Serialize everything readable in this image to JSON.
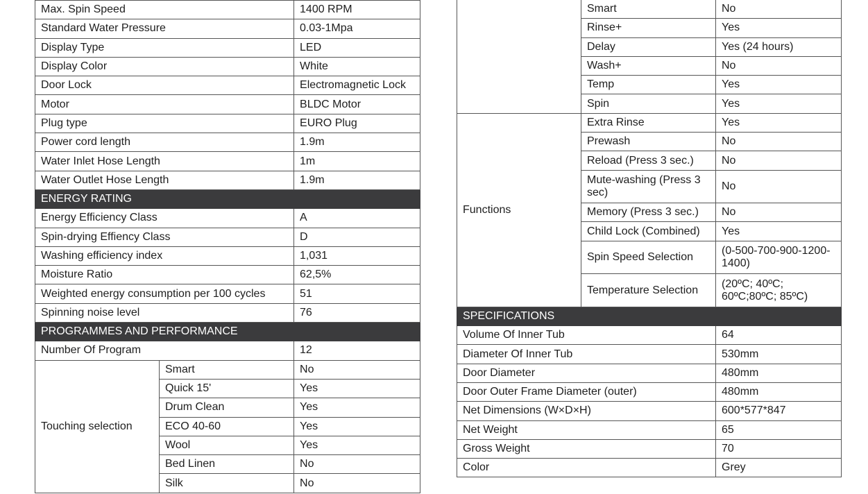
{
  "left_table": {
    "rows": [
      {
        "label": "Max. Spin Speed",
        "value": "1400 RPM"
      },
      {
        "label": "Standard Water Pressure",
        "value": "0.03-1Mpa"
      },
      {
        "label": "Display Type",
        "value": "LED"
      },
      {
        "label": "Display Color",
        "value": "White"
      },
      {
        "label": "Door Lock",
        "value": "Electromagnetic Lock"
      },
      {
        "label": "Motor",
        "value": "BLDC Motor"
      },
      {
        "label": "Plug type",
        "value": "EURO Plug"
      },
      {
        "label": "Power cord length",
        "value": "1.9m"
      },
      {
        "label": "Water Inlet Hose Length",
        "value": "1m"
      },
      {
        "label": "Water Outlet Hose Length",
        "value": "1.9m"
      },
      {
        "header": "ENERGY RATING"
      },
      {
        "label": "Energy Efficiency Class",
        "value": "A"
      },
      {
        "label": "Spin-drying Effiency Class",
        "value": "D"
      },
      {
        "label": "Washing efficiency index",
        "value": "1,031"
      },
      {
        "label": "Moisture Ratio",
        "value": "62,5%"
      },
      {
        "label": "Weighted energy consumption per 100 cycles",
        "value": "51"
      },
      {
        "label": "Spinning noise level",
        "value": "76"
      },
      {
        "header": "PROGRAMMES AND PERFORMANCE"
      },
      {
        "label": "Number Of Program",
        "value": "12"
      }
    ],
    "group": {
      "label": "Touching selection",
      "items": [
        {
          "label": "Smart",
          "value": "No"
        },
        {
          "label": "Quick 15'",
          "value": "Yes"
        },
        {
          "label": "Drum Clean",
          "value": "Yes"
        },
        {
          "label": "ECO 40-60",
          "value": "Yes"
        },
        {
          "label": "Wool",
          "value": "Yes"
        },
        {
          "label": "Bed Linen",
          "value": "No"
        },
        {
          "label": "Silk",
          "value": "No"
        }
      ]
    }
  },
  "right_table": {
    "continued_group": {
      "label": "",
      "items": [
        {
          "label": "Smart",
          "value": "No"
        },
        {
          "label": "Rinse+",
          "value": "Yes"
        },
        {
          "label": "Delay",
          "value": "Yes (24 hours)"
        },
        {
          "label": "Wash+",
          "value": "No"
        },
        {
          "label": "Temp",
          "value": "Yes"
        },
        {
          "label": "Spin",
          "value": "Yes"
        }
      ]
    },
    "functions_group": {
      "label": "Functions",
      "items": [
        {
          "label": "Extra Rinse",
          "value": "Yes"
        },
        {
          "label": "Prewash",
          "value": "No"
        },
        {
          "label": "Reload (Press 3 sec.)",
          "value": "No"
        },
        {
          "label": "Mute-washing (Press 3 sec)",
          "value": "No",
          "tall": true
        },
        {
          "label": "Memory (Press 3 sec.)",
          "value": "No"
        },
        {
          "label": "Child Lock (Combined)",
          "value": "Yes"
        },
        {
          "label": "Spin Speed Selection",
          "value": "(0-500-700-900-1200-1400)",
          "tall": true
        },
        {
          "label": "Temperature Selection",
          "value": "(20ºC; 40ºC; 60ºC;80ºC; 85ºC)",
          "tall": true
        }
      ]
    },
    "specifications": {
      "header": "SPECIFICATIONS",
      "rows": [
        {
          "label": "Volume Of Inner Tub",
          "value": "64"
        },
        {
          "label": "Diameter Of Inner Tub",
          "value": "530mm"
        },
        {
          "label": "Door Diameter",
          "value": "480mm"
        },
        {
          "label": "Door Outer Frame Diameter (outer)",
          "value": "480mm"
        },
        {
          "label": "Net Dimensions (W×D×H)",
          "value": "600*577*847"
        },
        {
          "label": "Net Weight",
          "value": "65"
        },
        {
          "label": "Gross Weight",
          "value": "70"
        },
        {
          "label": "Color",
          "value": "Grey"
        }
      ]
    },
    "header_color": "#3b3b3d"
  }
}
